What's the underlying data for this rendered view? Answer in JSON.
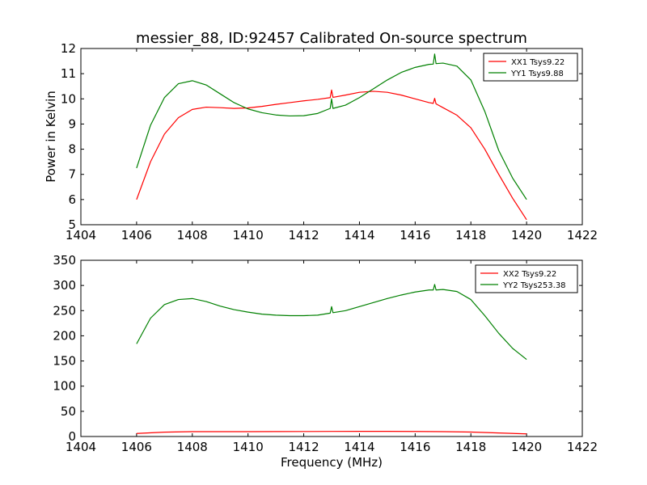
{
  "chart_data": [
    {
      "type": "line",
      "title": "messier_88, ID:92457 Calibrated On-source spectrum",
      "xlabel": "",
      "ylabel": "Power in Kelvin",
      "xlim": [
        1404,
        1422
      ],
      "ylim": [
        5,
        12
      ],
      "xticks": [
        "1404",
        "1406",
        "1408",
        "1410",
        "1412",
        "1414",
        "1416",
        "1418",
        "1420",
        "1422"
      ],
      "yticks": [
        "5",
        "6",
        "7",
        "8",
        "9",
        "10",
        "11",
        "12"
      ],
      "legend_position": "top-right",
      "series": [
        {
          "name": "XX1 Tsys9.22",
          "color": "#ff0000",
          "x": [
            1406,
            1406.5,
            1407,
            1407.5,
            1408,
            1408.5,
            1409,
            1409.5,
            1410,
            1410.5,
            1411,
            1411.5,
            1412,
            1412.5,
            1412.95,
            1413,
            1413.05,
            1413.5,
            1414,
            1414.5,
            1415,
            1415.5,
            1416,
            1416.5,
            1416.65,
            1416.7,
            1416.75,
            1417,
            1417.5,
            1418,
            1418.5,
            1419,
            1419.5,
            1420
          ],
          "y": [
            6.0,
            7.5,
            8.6,
            9.25,
            9.58,
            9.67,
            9.65,
            9.62,
            9.64,
            9.7,
            9.78,
            9.85,
            9.92,
            9.98,
            10.05,
            10.35,
            10.06,
            10.15,
            10.26,
            10.3,
            10.26,
            10.15,
            10.0,
            9.85,
            9.82,
            10.02,
            9.8,
            9.65,
            9.35,
            8.85,
            8.0,
            7.0,
            6.05,
            5.2
          ]
        },
        {
          "name": "YY1 Tsys9.88",
          "color": "#008000",
          "x": [
            1406,
            1406.5,
            1407,
            1407.5,
            1408,
            1408.5,
            1409,
            1409.5,
            1410,
            1410.5,
            1411,
            1411.5,
            1412,
            1412.5,
            1412.95,
            1413,
            1413.05,
            1413.5,
            1414,
            1414.5,
            1415,
            1415.5,
            1416,
            1416.5,
            1416.65,
            1416.7,
            1416.75,
            1417,
            1417.5,
            1418,
            1418.5,
            1419,
            1419.5,
            1420
          ],
          "y": [
            7.25,
            8.95,
            10.05,
            10.6,
            10.72,
            10.55,
            10.2,
            9.85,
            9.6,
            9.45,
            9.36,
            9.32,
            9.33,
            9.42,
            9.62,
            10.0,
            9.62,
            9.75,
            10.05,
            10.4,
            10.75,
            11.05,
            11.25,
            11.37,
            11.38,
            11.78,
            11.4,
            11.42,
            11.3,
            10.75,
            9.5,
            7.95,
            6.85,
            6.0
          ]
        }
      ]
    },
    {
      "type": "line",
      "title": "",
      "xlabel": "Frequency (MHz)",
      "ylabel": "",
      "xlim": [
        1404,
        1422
      ],
      "ylim": [
        0,
        350
      ],
      "xticks": [
        "1404",
        "1406",
        "1408",
        "1410",
        "1412",
        "1414",
        "1416",
        "1418",
        "1420",
        "1422"
      ],
      "yticks": [
        "0",
        "50",
        "100",
        "150",
        "200",
        "250",
        "300",
        "350"
      ],
      "legend_position": "top-right",
      "series": [
        {
          "name": "XX2 Tsys9.22",
          "color": "#ff0000",
          "x": [
            1406,
            1407,
            1408,
            1409,
            1410,
            1411,
            1412,
            1413,
            1414,
            1415,
            1416,
            1417,
            1418,
            1419,
            1420
          ],
          "y": [
            6.0,
            8.6,
            9.6,
            9.65,
            9.64,
            9.78,
            9.92,
            10.1,
            10.26,
            10.26,
            10.0,
            9.65,
            8.85,
            7.0,
            5.2
          ]
        },
        {
          "name": "YY2 Tsys253.38",
          "color": "#008000",
          "x": [
            1406,
            1406.5,
            1407,
            1407.5,
            1408,
            1408.5,
            1409,
            1409.5,
            1410,
            1410.5,
            1411,
            1411.5,
            1412,
            1412.5,
            1412.95,
            1413,
            1413.05,
            1413.5,
            1414,
            1414.5,
            1415,
            1415.5,
            1416,
            1416.5,
            1416.65,
            1416.7,
            1416.75,
            1417,
            1417.5,
            1418,
            1418.5,
            1419,
            1419.5,
            1420
          ],
          "y": [
            184,
            235,
            262,
            272,
            274,
            268,
            259,
            252,
            247,
            243,
            241,
            240,
            240,
            241,
            245,
            258,
            246,
            250,
            258,
            266,
            274,
            281,
            287,
            291,
            291,
            302,
            291,
            292,
            288,
            272,
            240,
            205,
            175,
            153
          ]
        }
      ]
    }
  ]
}
